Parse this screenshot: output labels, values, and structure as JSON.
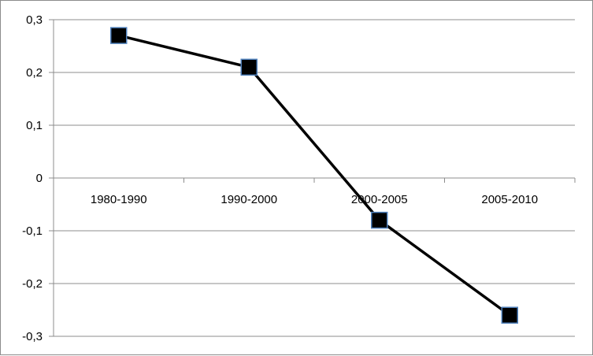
{
  "chart_data": {
    "type": "line",
    "categories": [
      "1980-1990",
      "1990-2000",
      "2000-2005",
      "2005-2010"
    ],
    "series": [
      {
        "values": [
          0.27,
          0.21,
          -0.08,
          -0.26
        ]
      }
    ],
    "y_ticks": [
      "0,3",
      "0,2",
      "0,1",
      "0",
      "-0,1",
      "-0,2",
      "-0,3"
    ],
    "y_tick_values": [
      0.3,
      0.2,
      0.1,
      0,
      -0.1,
      -0.2,
      -0.3
    ],
    "ylim": [
      -0.3,
      0.3
    ],
    "title": "",
    "xlabel": "",
    "ylabel": "",
    "grid": true,
    "legend": "none",
    "line_color": "#000000",
    "marker_fill": "#000000",
    "marker_edge": "#4f81bd",
    "marker_shape": "square"
  }
}
